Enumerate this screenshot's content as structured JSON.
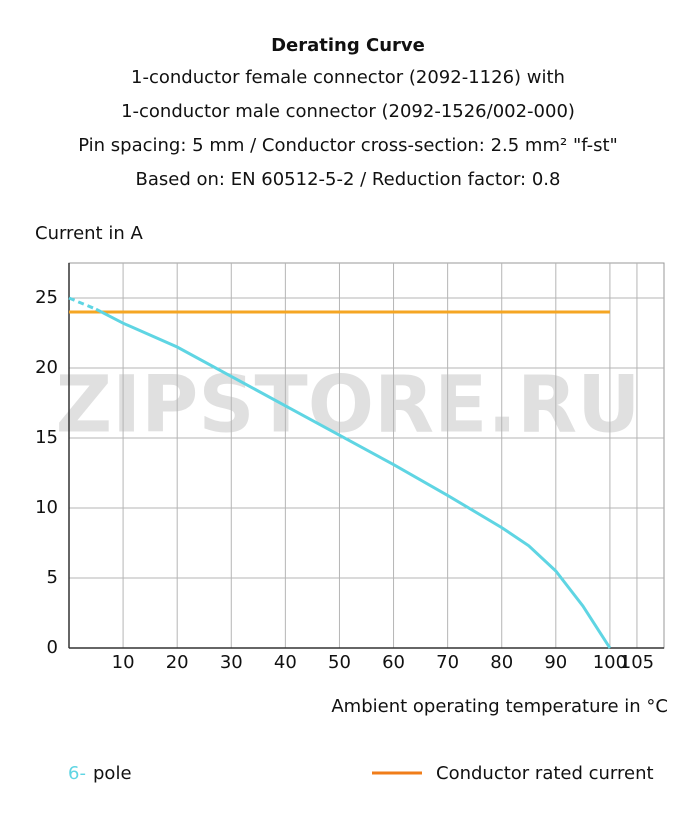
{
  "chart_data": {
    "type": "line",
    "title": "Derating Curve",
    "subtitle": [
      "1-conductor female connector (2092-1126) with",
      "1-conductor male connector (2092-1526/002-000)",
      "Pin spacing: 5 mm / Conductor cross-section: 2.5 mm² \"f-st\"",
      "Based on: EN 60512-5-2 / Reduction factor: 0.8"
    ],
    "y_label": "Current in A",
    "x_label": "Ambient operating temperature in °C",
    "watermark": "ZIPSTORE.RU",
    "x": [
      0,
      5,
      10,
      20,
      30,
      40,
      50,
      60,
      70,
      80,
      85,
      90,
      95,
      100
    ],
    "series": [
      {
        "name": "6-",
        "suffix": "pole",
        "color": "#5fd5e3",
        "dashed_first_segment": true,
        "values": [
          25,
          24.2,
          23.2,
          21.5,
          19.4,
          17.3,
          15.2,
          13.1,
          10.9,
          8.6,
          7.3,
          5.5,
          3,
          0
        ]
      },
      {
        "name": "Conductor rated current",
        "color": "#f5a623",
        "legend_color": "#f07d1a",
        "values": [
          24,
          24,
          24,
          24,
          24,
          24,
          24,
          24,
          24,
          24,
          24,
          24,
          24,
          24
        ]
      }
    ],
    "xlim": [
      0,
      110
    ],
    "ylim": [
      0,
      27.5
    ],
    "xticks": [
      10,
      20,
      30,
      40,
      50,
      60,
      70,
      80,
      90,
      100,
      105
    ],
    "yticks": [
      0,
      5,
      10,
      15,
      20,
      25
    ],
    "grid": true
  }
}
